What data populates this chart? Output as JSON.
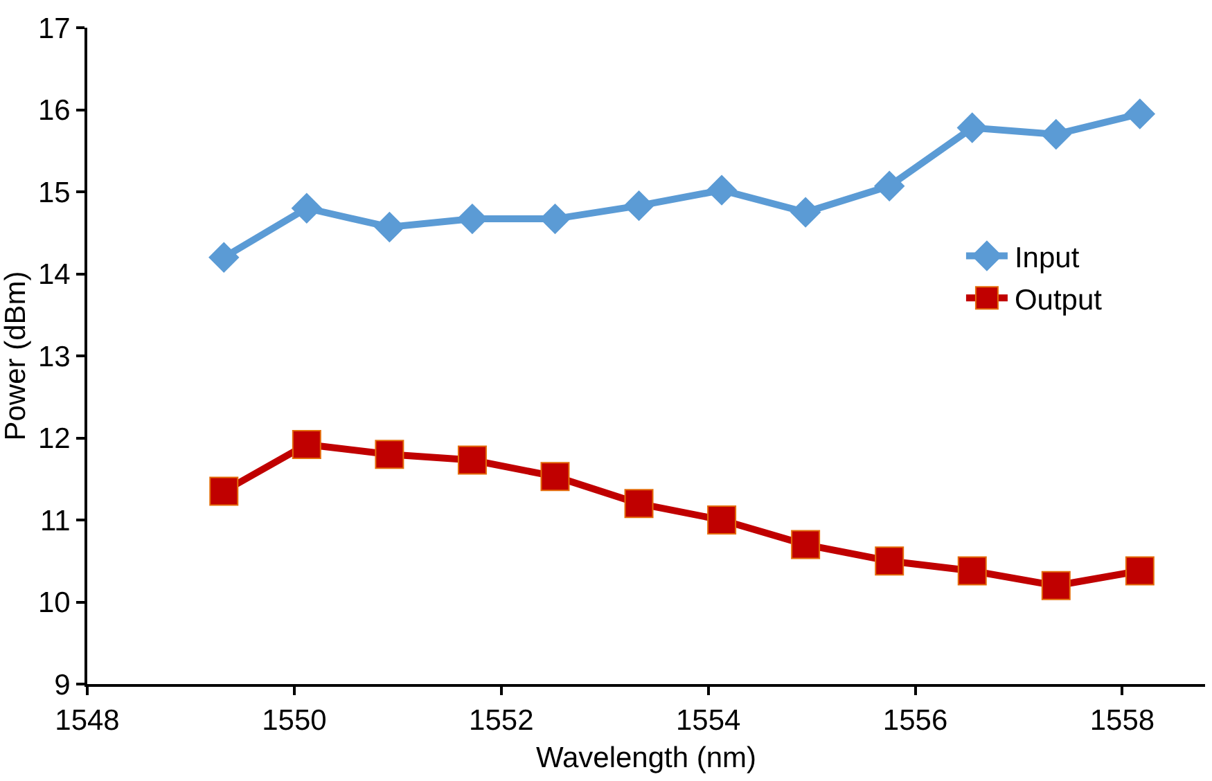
{
  "chart_data": {
    "type": "line",
    "xlabel": "Wavelength (nm)",
    "ylabel": "Power (dBm)",
    "xlim": [
      1548,
      1558.8
    ],
    "xticks": [
      1548,
      1550,
      1552,
      1554,
      1556,
      1558
    ],
    "ylim": [
      9,
      17
    ],
    "yticks": [
      9,
      10,
      11,
      12,
      13,
      14,
      15,
      16,
      17
    ],
    "grid": false,
    "legend": "right",
    "line_style": "solid",
    "series": [
      {
        "name": "Input",
        "color": "#5b9bd5",
        "marker": "diamond",
        "x": [
          1549.32,
          1550.12,
          1550.92,
          1551.72,
          1552.52,
          1553.33,
          1554.13,
          1554.94,
          1555.75,
          1556.55,
          1557.36,
          1558.17
        ],
        "values": [
          14.2,
          14.8,
          14.57,
          14.67,
          14.67,
          14.83,
          15.02,
          14.75,
          15.07,
          15.78,
          15.7,
          15.95
        ]
      },
      {
        "name": "Output",
        "color": "#c00000",
        "marker": "square",
        "x": [
          1549.32,
          1550.12,
          1550.92,
          1551.72,
          1552.52,
          1553.33,
          1554.13,
          1554.94,
          1555.75,
          1556.55,
          1557.36,
          1558.17
        ],
        "values": [
          11.35,
          11.92,
          11.8,
          11.73,
          11.53,
          11.2,
          11.0,
          10.7,
          10.5,
          10.38,
          10.2,
          10.38
        ]
      }
    ]
  }
}
